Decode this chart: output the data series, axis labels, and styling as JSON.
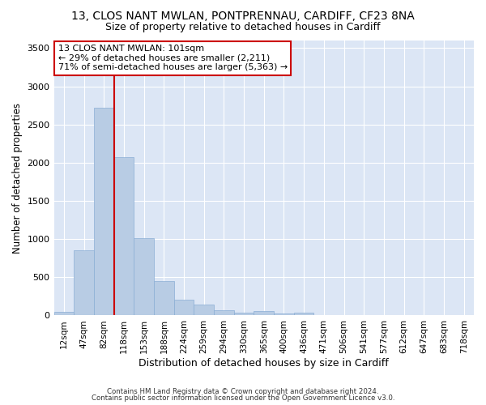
{
  "title1": "13, CLOS NANT MWLAN, PONTPRENNAU, CARDIFF, CF23 8NA",
  "title2": "Size of property relative to detached houses in Cardiff",
  "xlabel": "Distribution of detached houses by size in Cardiff",
  "ylabel": "Number of detached properties",
  "categories": [
    "12sqm",
    "47sqm",
    "82sqm",
    "118sqm",
    "153sqm",
    "188sqm",
    "224sqm",
    "259sqm",
    "294sqm",
    "330sqm",
    "365sqm",
    "400sqm",
    "436sqm",
    "471sqm",
    "506sqm",
    "541sqm",
    "577sqm",
    "612sqm",
    "647sqm",
    "683sqm",
    "718sqm"
  ],
  "values": [
    50,
    850,
    2720,
    2070,
    1010,
    455,
    205,
    145,
    70,
    40,
    60,
    30,
    35,
    10,
    0,
    0,
    0,
    0,
    0,
    0,
    0
  ],
  "bar_color": "#b8cce4",
  "bar_edge_color": "#8baed4",
  "vline_color": "#cc0000",
  "annotation_text": "13 CLOS NANT MWLAN: 101sqm\n← 29% of detached houses are smaller (2,211)\n71% of semi-detached houses are larger (5,363) →",
  "annotation_box_color": "white",
  "annotation_box_edge": "#cc0000",
  "ylim": [
    0,
    3600
  ],
  "yticks": [
    0,
    500,
    1000,
    1500,
    2000,
    2500,
    3000,
    3500
  ],
  "bg_color": "#dce6f5",
  "plot_bg_color": "#dce6f5",
  "footer1": "Contains HM Land Registry data © Crown copyright and database right 2024.",
  "footer2": "Contains public sector information licensed under the Open Government Licence v3.0.",
  "title1_fontsize": 10,
  "title2_fontsize": 9,
  "xlabel_fontsize": 9,
  "ylabel_fontsize": 8.5
}
